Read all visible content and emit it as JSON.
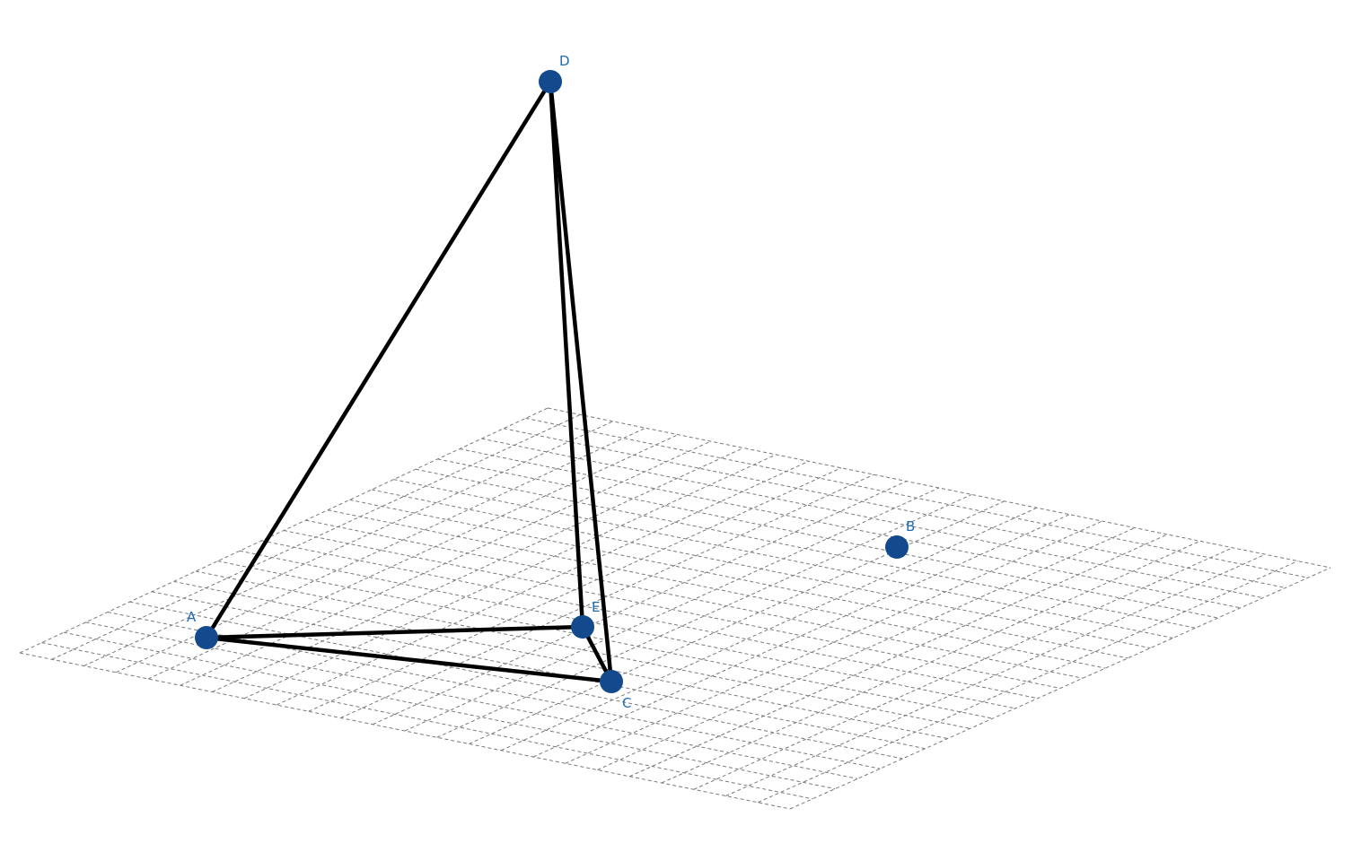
{
  "colors": {
    "point": "#124a8d",
    "label": "#1e6bb0",
    "edge": "#000000",
    "grid": "#7a7a7a"
  },
  "points": [
    {
      "id": "A",
      "label": "A"
    },
    {
      "id": "B",
      "label": "B"
    },
    {
      "id": "C",
      "label": "C"
    },
    {
      "id": "D",
      "label": "D"
    },
    {
      "id": "E",
      "label": "E"
    }
  ],
  "edges": [
    [
      "A",
      "D"
    ],
    [
      "A",
      "E"
    ],
    [
      "A",
      "C"
    ],
    [
      "E",
      "D"
    ],
    [
      "C",
      "D"
    ],
    [
      "E",
      "C"
    ]
  ]
}
